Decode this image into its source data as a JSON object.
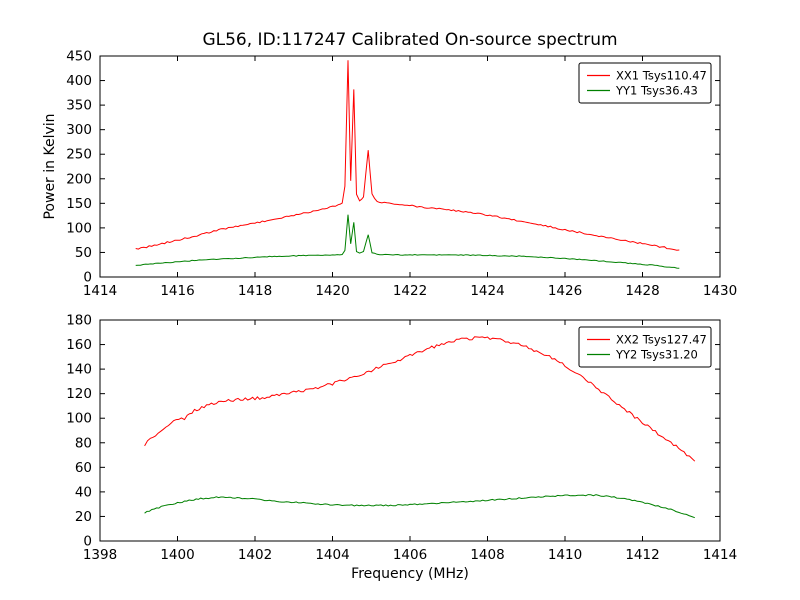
{
  "chart_data": [
    {
      "type": "line",
      "title": "GL56, ID:117247 Calibrated On-source spectrum",
      "xlabel": "",
      "ylabel": "Power in Kelvin",
      "xlim": [
        1414,
        1430
      ],
      "ylim": [
        0,
        450
      ],
      "xticks": [
        1414,
        1416,
        1418,
        1420,
        1422,
        1424,
        1426,
        1428,
        1430
      ],
      "yticks": [
        0,
        50,
        100,
        150,
        200,
        250,
        300,
        350,
        400,
        450
      ],
      "grid": false,
      "legend_position": "upper right",
      "series": [
        {
          "name": "XX1 Tsys110.47",
          "color": "#ff0000",
          "noise": 1.5,
          "points": [
            [
              1414.92,
              57
            ],
            [
              1415.2,
              61
            ],
            [
              1415.6,
              68
            ],
            [
              1416.0,
              75
            ],
            [
              1416.5,
              84
            ],
            [
              1417.0,
              95
            ],
            [
              1417.5,
              103
            ],
            [
              1418.0,
              110
            ],
            [
              1418.5,
              118
            ],
            [
              1419.0,
              126
            ],
            [
              1419.5,
              134
            ],
            [
              1419.8,
              139
            ],
            [
              1420.0,
              143
            ],
            [
              1420.15,
              146
            ],
            [
              1420.25,
              150
            ],
            [
              1420.32,
              185
            ],
            [
              1420.4,
              440
            ],
            [
              1420.47,
              195
            ],
            [
              1420.55,
              383
            ],
            [
              1420.62,
              170
            ],
            [
              1420.7,
              156
            ],
            [
              1420.8,
              163
            ],
            [
              1420.92,
              258
            ],
            [
              1421.02,
              170
            ],
            [
              1421.15,
              153
            ],
            [
              1421.4,
              150
            ],
            [
              1421.8,
              147
            ],
            [
              1422.5,
              141
            ],
            [
              1423.0,
              137
            ],
            [
              1423.5,
              132
            ],
            [
              1424.0,
              126
            ],
            [
              1424.5,
              119
            ],
            [
              1425.0,
              111
            ],
            [
              1425.5,
              104
            ],
            [
              1426.0,
              96
            ],
            [
              1426.5,
              89
            ],
            [
              1427.0,
              82
            ],
            [
              1427.5,
              75
            ],
            [
              1428.0,
              68
            ],
            [
              1428.5,
              61
            ],
            [
              1428.95,
              55
            ]
          ]
        },
        {
          "name": "YY1 Tsys36.43",
          "color": "#008000",
          "noise": 0.8,
          "points": [
            [
              1414.92,
              24
            ],
            [
              1415.5,
              28
            ],
            [
              1416.0,
              31
            ],
            [
              1416.5,
              34
            ],
            [
              1417.0,
              36
            ],
            [
              1417.5,
              38
            ],
            [
              1418.0,
              40
            ],
            [
              1418.5,
              42
            ],
            [
              1419.0,
              43
            ],
            [
              1419.5,
              44
            ],
            [
              1420.0,
              45
            ],
            [
              1420.25,
              46
            ],
            [
              1420.32,
              55
            ],
            [
              1420.4,
              127
            ],
            [
              1420.47,
              68
            ],
            [
              1420.55,
              112
            ],
            [
              1420.62,
              52
            ],
            [
              1420.7,
              48
            ],
            [
              1420.8,
              52
            ],
            [
              1420.92,
              86
            ],
            [
              1421.02,
              50
            ],
            [
              1421.15,
              46
            ],
            [
              1421.5,
              45
            ],
            [
              1422.0,
              45
            ],
            [
              1423.0,
              45
            ],
            [
              1424.0,
              44
            ],
            [
              1424.5,
              43
            ],
            [
              1425.0,
              42
            ],
            [
              1425.5,
              40
            ],
            [
              1426.0,
              38
            ],
            [
              1426.5,
              35
            ],
            [
              1427.0,
              32
            ],
            [
              1427.5,
              29
            ],
            [
              1428.0,
              26
            ],
            [
              1428.5,
              22
            ],
            [
              1428.95,
              18
            ]
          ]
        }
      ]
    },
    {
      "type": "line",
      "title": "",
      "xlabel": "Frequency (MHz)",
      "ylabel": "",
      "xlim": [
        1398,
        1414
      ],
      "ylim": [
        0,
        180
      ],
      "xticks": [
        1398,
        1400,
        1402,
        1404,
        1406,
        1408,
        1410,
        1412,
        1414
      ],
      "yticks": [
        0,
        20,
        40,
        60,
        80,
        100,
        120,
        140,
        160,
        180
      ],
      "grid": false,
      "legend_position": "upper right",
      "series": [
        {
          "name": "XX2 Tsys127.47",
          "color": "#ff0000",
          "noise": 1.2,
          "points": [
            [
              1399.15,
              78
            ],
            [
              1399.3,
              83
            ],
            [
              1399.5,
              88
            ],
            [
              1399.7,
              93
            ],
            [
              1399.9,
              97
            ],
            [
              1400.1,
              100
            ],
            [
              1400.18,
              98
            ],
            [
              1400.25,
              103
            ],
            [
              1400.5,
              107
            ],
            [
              1400.75,
              110
            ],
            [
              1401.0,
              113
            ],
            [
              1401.25,
              114
            ],
            [
              1401.5,
              115
            ],
            [
              1402.0,
              116
            ],
            [
              1402.5,
              118
            ],
            [
              1403.0,
              121
            ],
            [
              1403.5,
              124
            ],
            [
              1404.0,
              128
            ],
            [
              1404.5,
              133
            ],
            [
              1405.0,
              139
            ],
            [
              1405.5,
              145
            ],
            [
              1406.0,
              151
            ],
            [
              1406.5,
              157
            ],
            [
              1407.0,
              162
            ],
            [
              1407.4,
              164.5
            ],
            [
              1407.8,
              165.5
            ],
            [
              1408.2,
              164.5
            ],
            [
              1408.6,
              162
            ],
            [
              1409.0,
              158
            ],
            [
              1409.4,
              153
            ],
            [
              1409.8,
              147
            ],
            [
              1410.2,
              139
            ],
            [
              1410.6,
              130
            ],
            [
              1411.0,
              120
            ],
            [
              1411.4,
              111
            ],
            [
              1411.8,
              101
            ],
            [
              1412.2,
              92
            ],
            [
              1412.6,
              83
            ],
            [
              1413.0,
              74
            ],
            [
              1413.35,
              65
            ]
          ]
        },
        {
          "name": "YY2 Tsys31.20",
          "color": "#008000",
          "noise": 0.5,
          "points": [
            [
              1399.15,
              23
            ],
            [
              1399.4,
              26
            ],
            [
              1399.7,
              29
            ],
            [
              1400.0,
              31
            ],
            [
              1400.3,
              33
            ],
            [
              1400.6,
              34.5
            ],
            [
              1401.0,
              35.5
            ],
            [
              1401.3,
              35.5
            ],
            [
              1401.6,
              35
            ],
            [
              1402.0,
              34
            ],
            [
              1402.5,
              32.5
            ],
            [
              1403.0,
              31.5
            ],
            [
              1403.5,
              30.5
            ],
            [
              1404.0,
              29.5
            ],
            [
              1404.5,
              29
            ],
            [
              1405.0,
              28.8
            ],
            [
              1405.5,
              29
            ],
            [
              1406.0,
              29.5
            ],
            [
              1406.5,
              30.3
            ],
            [
              1407.0,
              31.2
            ],
            [
              1407.5,
              32.2
            ],
            [
              1408.0,
              33.2
            ],
            [
              1408.5,
              34.2
            ],
            [
              1409.0,
              35.2
            ],
            [
              1409.5,
              36.2
            ],
            [
              1410.0,
              37
            ],
            [
              1410.4,
              37.4
            ],
            [
              1410.8,
              37.2
            ],
            [
              1411.2,
              36
            ],
            [
              1411.6,
              34
            ],
            [
              1412.0,
              31.5
            ],
            [
              1412.4,
              28.5
            ],
            [
              1412.8,
              25
            ],
            [
              1413.2,
              21
            ],
            [
              1413.35,
              19
            ]
          ]
        }
      ]
    }
  ]
}
